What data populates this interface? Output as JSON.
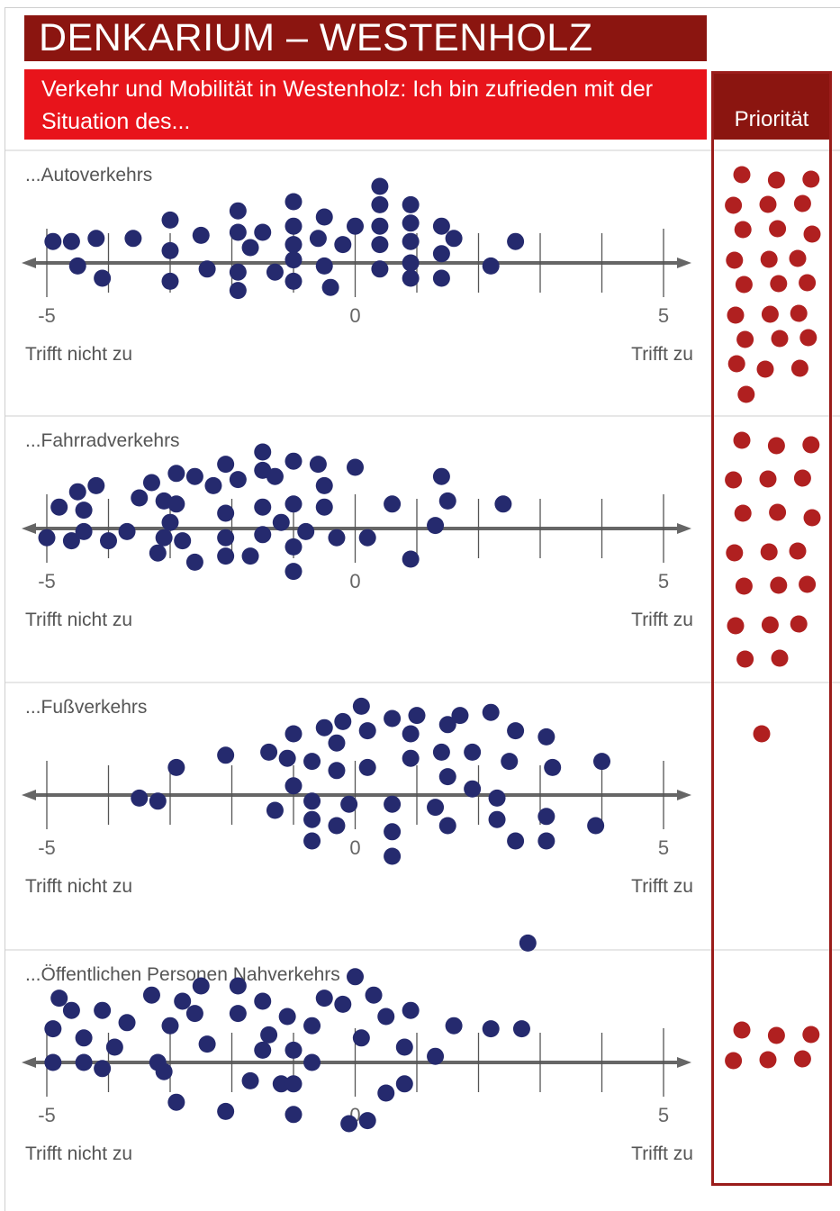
{
  "header": {
    "title": "DENKARIUM – WESTENHOLZ",
    "subtitle": "Verkehr und Mobilität in Westenholz: Ich bin zufrieden mit der Situation des...",
    "priority_label": "Priorität"
  },
  "colors": {
    "title_bg": "#8b1510",
    "subtitle_bg": "#e8141b",
    "dots": "#252a6e",
    "priority_dots": "#b02020",
    "axis": "#666666"
  },
  "chart_data": [
    {
      "type": "scatter",
      "title": "...Autoverkehrs",
      "xlabel_left": "Trifft nicht zu",
      "xlabel_right": "Trifft zu",
      "xlim": [
        -5,
        5
      ],
      "tick_labels": [
        "-5",
        "0",
        "5"
      ],
      "points": [
        [
          -4.9,
          0.7
        ],
        [
          -4.6,
          0.7
        ],
        [
          -4.2,
          0.8
        ],
        [
          -4.5,
          -0.1
        ],
        [
          -4.1,
          -0.5
        ],
        [
          -3.6,
          0.8
        ],
        [
          -3,
          1.4
        ],
        [
          -3,
          0.4
        ],
        [
          -3,
          -0.6
        ],
        [
          -2.5,
          0.9
        ],
        [
          -2.4,
          -0.2
        ],
        [
          -1.9,
          1.7
        ],
        [
          -1.9,
          1
        ],
        [
          -1.9,
          -0.3
        ],
        [
          -1.9,
          -0.9
        ],
        [
          -1.7,
          0.5
        ],
        [
          -1.5,
          1
        ],
        [
          -1.3,
          -0.3
        ],
        [
          -1,
          2
        ],
        [
          -1,
          1.2
        ],
        [
          -1,
          0.6
        ],
        [
          -1,
          0.1
        ],
        [
          -1,
          -0.6
        ],
        [
          -0.5,
          1.5
        ],
        [
          -0.6,
          0.8
        ],
        [
          -0.5,
          -0.1
        ],
        [
          -0.4,
          -0.8
        ],
        [
          -0.2,
          0.6
        ],
        [
          0,
          1.2
        ],
        [
          0.4,
          2.5
        ],
        [
          0.4,
          1.9
        ],
        [
          0.4,
          1.2
        ],
        [
          0.4,
          0.6
        ],
        [
          0.4,
          -0.2
        ],
        [
          0.9,
          1.9
        ],
        [
          0.9,
          1.3
        ],
        [
          0.9,
          0.7
        ],
        [
          0.9,
          0
        ],
        [
          0.9,
          -0.5
        ],
        [
          1.4,
          1.2
        ],
        [
          1.4,
          0.3
        ],
        [
          1.4,
          -0.5
        ],
        [
          1.6,
          0.8
        ],
        [
          2.2,
          -0.1
        ],
        [
          2.6,
          0.7
        ]
      ],
      "priority_count": 25
    },
    {
      "type": "scatter",
      "title": "...Fahrradverkehrs",
      "xlabel_left": "Trifft nicht zu",
      "xlabel_right": "Trifft zu",
      "xlim": [
        -5,
        5
      ],
      "tick_labels": [
        "-5",
        "0",
        "5"
      ],
      "points": [
        [
          -5,
          -0.3
        ],
        [
          -4.8,
          0.7
        ],
        [
          -4.6,
          -0.4
        ],
        [
          -4.5,
          1.2
        ],
        [
          -4.4,
          0.6
        ],
        [
          -4.4,
          -0.1
        ],
        [
          -4.2,
          1.4
        ],
        [
          -4,
          -0.4
        ],
        [
          -3.7,
          -0.1
        ],
        [
          -3.5,
          1
        ],
        [
          -3.3,
          1.5
        ],
        [
          -3.2,
          -0.8
        ],
        [
          -3.1,
          0.9
        ],
        [
          -3.1,
          -0.3
        ],
        [
          -3,
          0.2
        ],
        [
          -2.9,
          1.8
        ],
        [
          -2.9,
          0.8
        ],
        [
          -2.8,
          -0.4
        ],
        [
          -2.6,
          1.7
        ],
        [
          -2.6,
          -1.1
        ],
        [
          -2.3,
          1.4
        ],
        [
          -2.1,
          2.1
        ],
        [
          -2.1,
          0.5
        ],
        [
          -2.1,
          -0.3
        ],
        [
          -2.1,
          -0.9
        ],
        [
          -1.9,
          1.6
        ],
        [
          -1.7,
          -0.9
        ],
        [
          -1.5,
          2.5
        ],
        [
          -1.5,
          1.9
        ],
        [
          -1.5,
          0.7
        ],
        [
          -1.5,
          -0.2
        ],
        [
          -1.3,
          1.7
        ],
        [
          -1.2,
          0.2
        ],
        [
          -1,
          2.2
        ],
        [
          -1,
          0.8
        ],
        [
          -1,
          -0.6
        ],
        [
          -1,
          -1.4
        ],
        [
          -0.8,
          -0.1
        ],
        [
          -0.6,
          2.1
        ],
        [
          -0.5,
          1.4
        ],
        [
          -0.5,
          0.7
        ],
        [
          -0.3,
          -0.3
        ],
        [
          0,
          2
        ],
        [
          0.2,
          -0.3
        ],
        [
          0.6,
          0.8
        ],
        [
          0.9,
          -1
        ],
        [
          1.3,
          0.1
        ],
        [
          1.4,
          1.7
        ],
        [
          1.5,
          0.9
        ],
        [
          2.4,
          0.8
        ]
      ],
      "priority_count": 20
    },
    {
      "type": "scatter",
      "title": "...Fußverkehrs",
      "xlabel_left": "Trifft nicht zu",
      "xlabel_right": "Trifft zu",
      "xlim": [
        -5,
        5
      ],
      "tick_labels": [
        "-5",
        "0",
        "5"
      ],
      "points": [
        [
          -3.5,
          -0.1
        ],
        [
          -3.2,
          -0.2
        ],
        [
          -2.9,
          0.9
        ],
        [
          -2.1,
          1.3
        ],
        [
          -1.4,
          1.4
        ],
        [
          -1.3,
          -0.5
        ],
        [
          -1.1,
          1.2
        ],
        [
          -1,
          0.3
        ],
        [
          -1,
          2
        ],
        [
          -0.7,
          -0.8
        ],
        [
          -0.7,
          -1.5
        ],
        [
          -0.7,
          -0.2
        ],
        [
          -0.7,
          1.1
        ],
        [
          -0.5,
          2.2
        ],
        [
          -0.3,
          1.7
        ],
        [
          -0.3,
          0.8
        ],
        [
          -0.3,
          -1
        ],
        [
          -0.2,
          2.4
        ],
        [
          -0.1,
          -0.3
        ],
        [
          0.1,
          2.9
        ],
        [
          0.2,
          0.9
        ],
        [
          0.2,
          2.1
        ],
        [
          0.6,
          2.5
        ],
        [
          0.6,
          -1.2
        ],
        [
          0.6,
          -0.3
        ],
        [
          0.6,
          -2
        ],
        [
          0.9,
          1.2
        ],
        [
          0.9,
          2
        ],
        [
          1,
          2.6
        ],
        [
          1.3,
          -0.4
        ],
        [
          1.4,
          1.4
        ],
        [
          1.5,
          0.6
        ],
        [
          1.5,
          2.3
        ],
        [
          1.5,
          -1
        ],
        [
          1.7,
          2.6
        ],
        [
          1.9,
          0.2
        ],
        [
          1.9,
          1.4
        ],
        [
          2.2,
          2.7
        ],
        [
          2.3,
          -0.1
        ],
        [
          2.3,
          -0.8
        ],
        [
          2.5,
          1.1
        ],
        [
          2.6,
          2.1
        ],
        [
          2.6,
          -1.5
        ],
        [
          3.1,
          -0.7
        ],
        [
          3.1,
          1.9
        ],
        [
          3.1,
          -1.5
        ],
        [
          3.2,
          0.9
        ],
        [
          3.9,
          -1
        ],
        [
          4,
          1.1
        ]
      ],
      "priority_count": 1
    },
    {
      "type": "scatter",
      "title": "...Öffentlichen Personen Nahverkehrs",
      "xlabel_left": "Trifft nicht zu",
      "xlabel_right": "Trifft zu",
      "xlim": [
        -5,
        5
      ],
      "tick_labels": [
        "-5",
        "0",
        "5"
      ],
      "points": [
        [
          -4.9,
          0
        ],
        [
          -4.9,
          1.1
        ],
        [
          -4.8,
          2.1
        ],
        [
          -4.6,
          1.7
        ],
        [
          -4.4,
          0
        ],
        [
          -4.4,
          0.8
        ],
        [
          -4.1,
          -0.2
        ],
        [
          -4.1,
          1.7
        ],
        [
          -3.9,
          0.5
        ],
        [
          -3.7,
          1.3
        ],
        [
          -3.3,
          2.2
        ],
        [
          -3.2,
          0
        ],
        [
          -3.1,
          -0.3
        ],
        [
          -3,
          1.2
        ],
        [
          -2.9,
          -1.3
        ],
        [
          -2.8,
          2
        ],
        [
          -2.6,
          1.6
        ],
        [
          -2.5,
          2.5
        ],
        [
          -2.4,
          0.6
        ],
        [
          -2.1,
          -1.6
        ],
        [
          -1.9,
          2.5
        ],
        [
          -1.9,
          1.6
        ],
        [
          -1.7,
          -0.6
        ],
        [
          -1.5,
          0.4
        ],
        [
          -1.5,
          2
        ],
        [
          -1.4,
          0.9
        ],
        [
          -1.2,
          -0.7
        ],
        [
          -1.1,
          1.5
        ],
        [
          -1,
          0.4
        ],
        [
          -1,
          -0.7
        ],
        [
          -1,
          -1.7
        ],
        [
          -0.7,
          0
        ],
        [
          -0.7,
          1.2
        ],
        [
          -0.5,
          2.1
        ],
        [
          -0.2,
          1.9
        ],
        [
          -0.1,
          -2
        ],
        [
          0,
          2.8
        ],
        [
          0.1,
          0.8
        ],
        [
          0.2,
          -1.9
        ],
        [
          0.3,
          2.2
        ],
        [
          0.5,
          1.5
        ],
        [
          0.5,
          -1
        ],
        [
          0.8,
          0.5
        ],
        [
          0.8,
          -0.7
        ],
        [
          0.9,
          1.7
        ],
        [
          1.3,
          0.2
        ],
        [
          1.6,
          1.2
        ],
        [
          2.2,
          1.1
        ],
        [
          2.7,
          1.1
        ],
        [
          2.8,
          3.9
        ]
      ],
      "priority_count": 6
    }
  ]
}
